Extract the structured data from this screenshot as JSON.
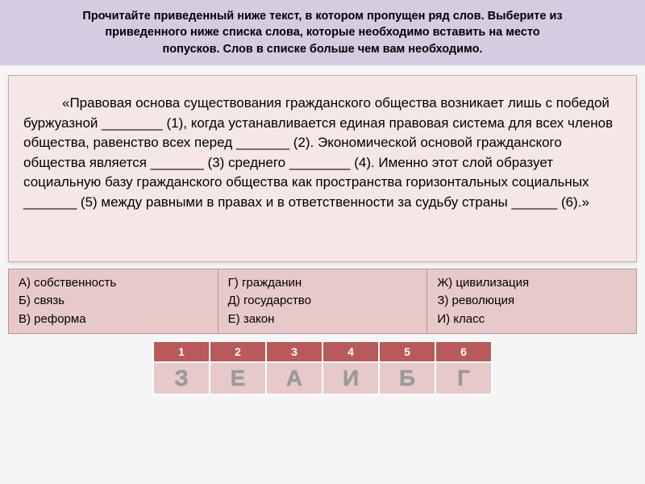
{
  "header": {
    "line1": "Прочитайте приведенный ниже текст,  в котором пропущен ряд слов. Выберите из",
    "line2": "приведенного ниже списка слова, которые необходимо вставить на место",
    "line3": "попусков. Слов в списке больше чем вам необходимо."
  },
  "main_text": "«Правовая основа существования гражданского общества возникает лишь с победой буржуазной ________ (1), когда устанавливается единая правовая система для всех членов общества, равенство всех перед _______ (2). Экономической основой гражданского общества является _______ (3) среднего ________ (4). Именно этот слой образует социальную базу гражданского общества как пространства горизонтальных социальных  _______ (5) между равными в правах и в ответственности за судьбу страны ______ (6).»",
  "options": {
    "col1": {
      "a": "А) собственность",
      "b": "Б) связь",
      "c": "В) реформа"
    },
    "col2": {
      "a": "Г) гражданин",
      "b": "Д) государство",
      "c": "Е) закон"
    },
    "col3": {
      "a": "Ж) цивилизация",
      "b": "З) революция",
      "c": "И) класс"
    }
  },
  "answer_numbers": [
    "1",
    "2",
    "3",
    "4",
    "5",
    "6"
  ],
  "answer_letters": [
    "З",
    "Е",
    "А",
    "И",
    "Б",
    "Г"
  ],
  "colors": {
    "header_bg": "#d4cce0",
    "main_bg": "#f5e7e7",
    "options_bg": "#e8c9c9",
    "num_row_bg": "#b85a5a"
  }
}
